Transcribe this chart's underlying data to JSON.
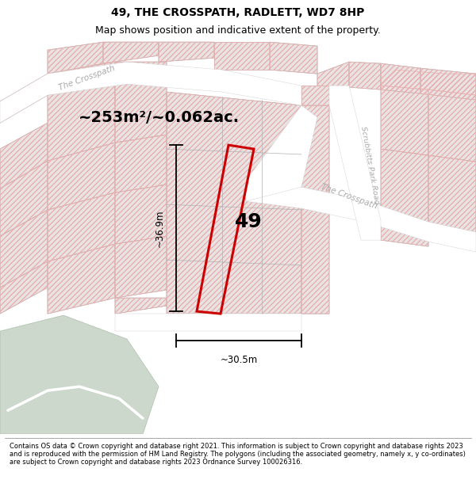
{
  "title": "49, THE CROSSPATH, RADLETT, WD7 8HP",
  "subtitle": "Map shows position and indicative extent of the property.",
  "footer": "Contains OS data © Crown copyright and database right 2021. This information is subject to Crown copyright and database rights 2023 and is reproduced with the permission of HM Land Registry. The polygons (including the associated geometry, namely x, y co-ordinates) are subject to Crown copyright and database rights 2023 Ordnance Survey 100026316.",
  "area_label": "~253m²/~0.062ac.",
  "property_number": "49",
  "dim_height": "~36.9m",
  "dim_width": "~30.5m",
  "red_color": "#cc0000",
  "hatch_color": "#e8b0b0",
  "plot_fill": "#e8e4e4",
  "road_fill": "#ffffff",
  "bg_color": "#e2e0e0",
  "green_fill": "#cdd8cc",
  "road_label_color": "#aaaaaa",
  "title_fontsize": 10,
  "subtitle_fontsize": 9
}
